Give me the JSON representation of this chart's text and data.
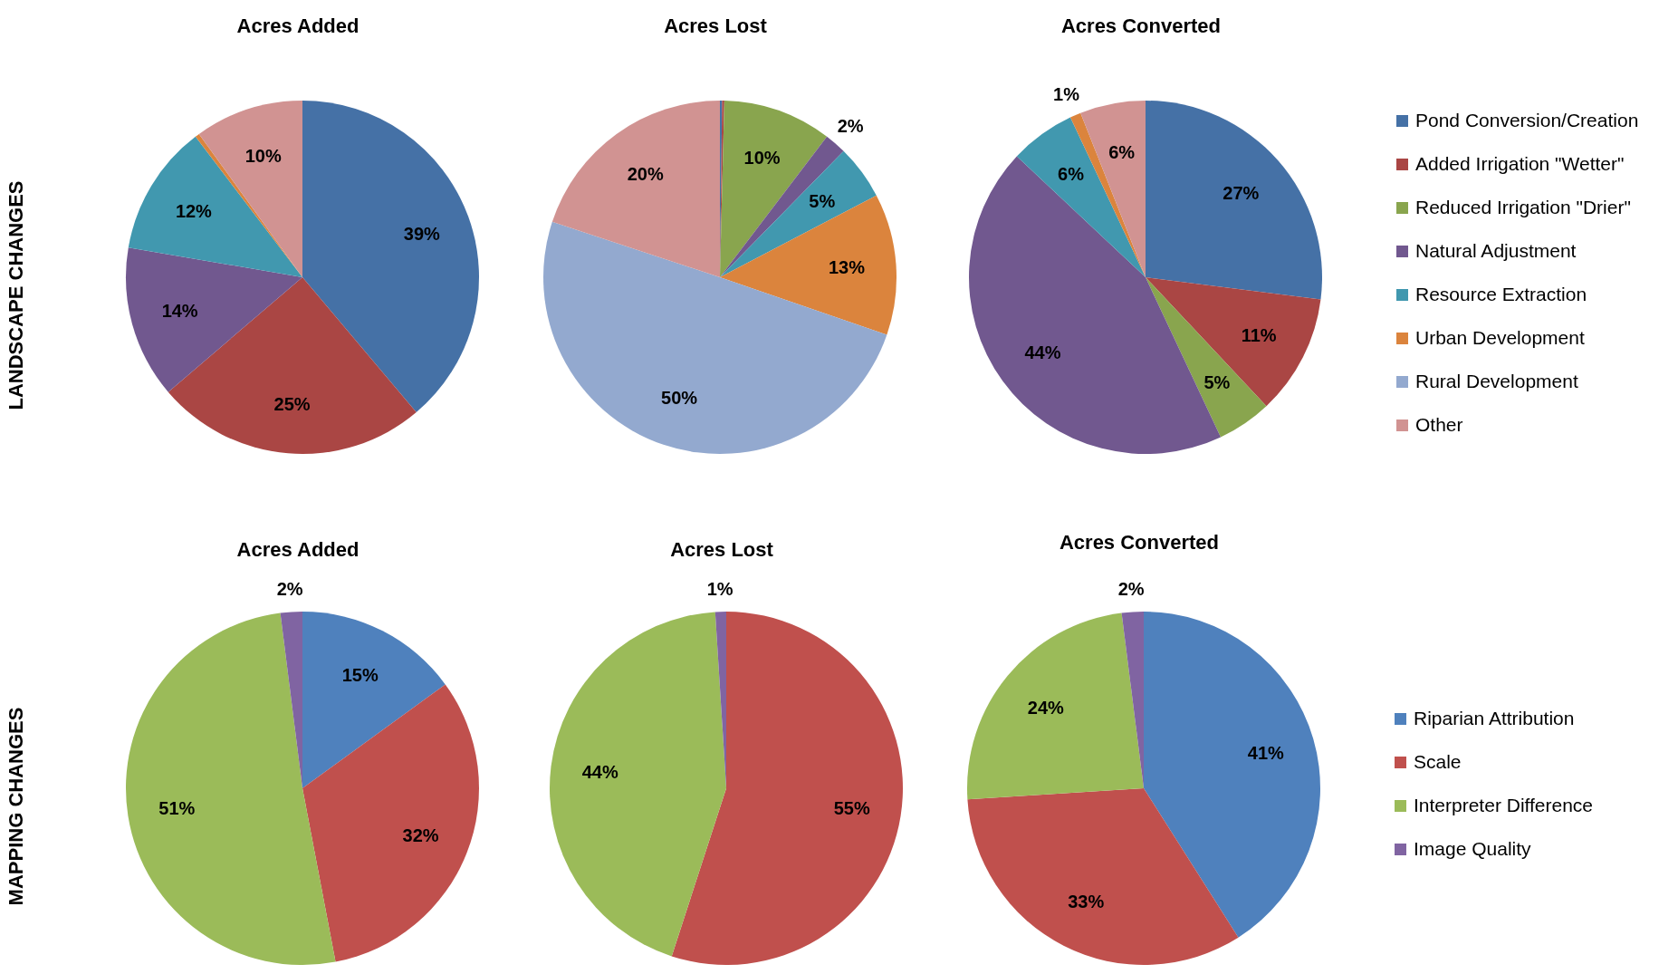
{
  "chart_data": [
    {
      "type": "pie",
      "title": "Acres Added",
      "ylabel": "LANDSCAPE CHANGES",
      "legend": "right",
      "categories": [
        "Pond Conversion/Creation",
        "Added Irrigation \"Wetter\"",
        "Reduced Irrigation \"Drier\"",
        "Natural Adjustment",
        "Resource Extraction",
        "Urban Development",
        "Rural Development",
        "Other"
      ],
      "values": [
        39,
        25,
        0,
        14,
        12,
        0.4,
        0,
        10
      ],
      "value_labels": [
        "39%",
        "25%",
        null,
        "14%",
        "12%",
        null,
        null,
        "10%"
      ],
      "colors": [
        "#4571a6",
        "#aa4644",
        "#89a54e",
        "#71588f",
        "#4198af",
        "#db843d",
        "#93a9cf",
        "#d19392"
      ]
    },
    {
      "type": "pie",
      "title": "Acres Lost",
      "categories": [
        null,
        null,
        null,
        null,
        null,
        null,
        null,
        null
      ],
      "values": [
        0.2,
        0.2,
        10,
        2,
        5,
        13,
        50,
        20
      ],
      "value_labels": [
        null,
        null,
        "10%",
        "2%",
        "5%",
        "13%",
        "50%",
        "20%"
      ],
      "colors": [
        "#4571a6",
        "#aa4644",
        "#89a54e",
        "#71588f",
        "#4198af",
        "#db843d",
        "#93a9cf",
        "#d19392"
      ]
    },
    {
      "type": "pie",
      "title": "Acres Converted",
      "categories": [
        null,
        null,
        null,
        null,
        null,
        null,
        null,
        null
      ],
      "values": [
        27,
        11,
        5,
        44,
        6,
        1,
        0,
        6
      ],
      "value_labels": [
        "27%",
        "11%",
        "5%",
        "44%",
        "6%",
        "1%",
        null,
        "6%"
      ],
      "colors": [
        "#4571a6",
        "#aa4644",
        "#89a54e",
        "#71588f",
        "#4198af",
        "#db843d",
        "#93a9cf",
        "#d19392"
      ]
    },
    {
      "type": "pie",
      "title": "Acres Added",
      "ylabel": "MAPPING CHANGES",
      "legend": "right",
      "categories": [
        "Riparian Attribution",
        "Scale",
        "Interpreter Difference",
        "Image Quality"
      ],
      "values": [
        15,
        32,
        51,
        2
      ],
      "value_labels": [
        "15%",
        "32%",
        "51%",
        "2%"
      ],
      "colors": [
        "#4f81bd",
        "#c0504d",
        "#9bbb59",
        "#8064a2"
      ]
    },
    {
      "type": "pie",
      "title": "Acres Lost",
      "categories": [
        null,
        null,
        null,
        null
      ],
      "values": [
        0,
        55,
        44,
        1
      ],
      "value_labels": [
        null,
        "55%",
        "44%",
        "1%"
      ],
      "colors": [
        "#4f81bd",
        "#c0504d",
        "#9bbb59",
        "#8064a2"
      ]
    },
    {
      "type": "pie",
      "title": "Acres Converted",
      "categories": [
        null,
        null,
        null,
        null
      ],
      "values": [
        41,
        33,
        24,
        2
      ],
      "value_labels": [
        "41%",
        "33%",
        "24%",
        "2%"
      ],
      "colors": [
        "#4f81bd",
        "#c0504d",
        "#9bbb59",
        "#8064a2"
      ]
    }
  ]
}
